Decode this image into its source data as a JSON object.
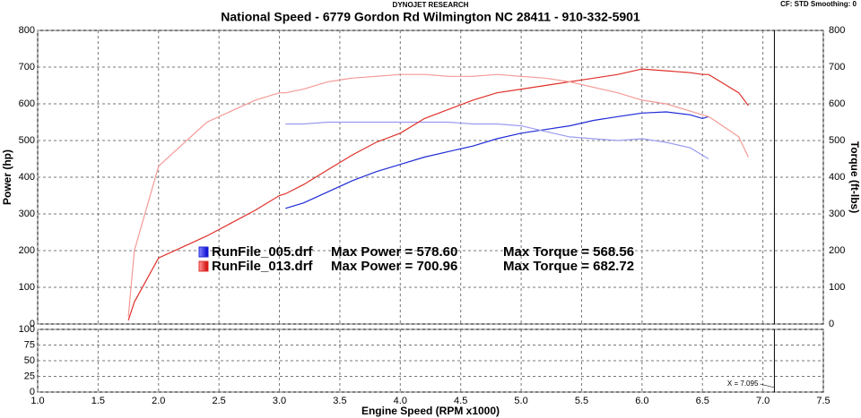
{
  "chart_data": {
    "type": "line",
    "header": "DYNOJET RESEARCH",
    "title": "National Speed - 6779 Gordon Rd Wilmington NC 28411 - 910-332-5901",
    "corner_note": "CF: STD  Smoothing: 0",
    "y_label": "Power (hp)",
    "y2_label": "Torque (ft-lbs)",
    "x_label": "Engine Speed (RPM x1000)",
    "grid": true,
    "xlim": [
      1.0,
      7.5
    ],
    "xticks": [
      {
        "value": 1,
        "label": "1.0"
      },
      1.5,
      {
        "value": 2,
        "label": "2.0"
      },
      2.5,
      {
        "value": 3,
        "label": "3.0"
      },
      3.5,
      {
        "value": 4,
        "label": "4.0"
      },
      4.5,
      {
        "value": 5,
        "label": "5.0"
      },
      5.5,
      {
        "value": 6,
        "label": "6.0"
      },
      6.5,
      {
        "value": 7,
        "label": "7.0"
      },
      7.5
    ],
    "ylim": [
      0,
      800
    ],
    "yticks": [
      0,
      100,
      200,
      300,
      400,
      500,
      600,
      700,
      800
    ],
    "y2lim": [
      0,
      800
    ],
    "y2ticks": [
      0,
      100,
      200,
      300,
      400,
      500,
      600,
      700,
      800
    ],
    "x": [
      1.75,
      1.8,
      2.0,
      2.2,
      2.4,
      2.6,
      2.8,
      3.0,
      3.05,
      3.2,
      3.4,
      3.6,
      3.8,
      4.0,
      4.2,
      4.4,
      4.6,
      4.8,
      5.0,
      5.2,
      5.4,
      5.6,
      5.8,
      6.0,
      6.2,
      6.4,
      6.5,
      6.55,
      6.6,
      6.8,
      6.88
    ],
    "series": [
      {
        "name": "RunFile_005.drf",
        "color": "#1f2ad6",
        "values": [
          null,
          null,
          null,
          null,
          null,
          null,
          null,
          null,
          315,
          330,
          360,
          390,
          415,
          435,
          455,
          470,
          485,
          505,
          520,
          530,
          540,
          555,
          565,
          575,
          578,
          570,
          560,
          565,
          null,
          null,
          null
        ]
      },
      {
        "name": "RunFile_005.drf",
        "color": "#9a9cf0",
        "axis": "y2",
        "values": [
          null,
          null,
          null,
          null,
          null,
          null,
          null,
          null,
          545,
          545,
          550,
          550,
          550,
          550,
          550,
          550,
          545,
          545,
          540,
          525,
          510,
          505,
          500,
          505,
          495,
          480,
          460,
          450,
          null,
          null,
          null
        ]
      },
      {
        "name": "RunFile_013.drf",
        "color": "#e0302a",
        "values": [
          10,
          60,
          180,
          210,
          240,
          275,
          310,
          350,
          355,
          380,
          420,
          460,
          495,
          520,
          560,
          585,
          610,
          630,
          640,
          650,
          660,
          670,
          680,
          695,
          690,
          685,
          680,
          680,
          670,
          630,
          595
        ]
      },
      {
        "name": "RunFile_013.drf",
        "color": "#f49a96",
        "axis": "y2",
        "values": [
          20,
          200,
          430,
          490,
          550,
          580,
          610,
          630,
          630,
          640,
          660,
          670,
          675,
          680,
          680,
          675,
          675,
          680,
          675,
          670,
          660,
          645,
          630,
          610,
          600,
          580,
          570,
          565,
          555,
          510,
          455
        ]
      }
    ],
    "annotations": [
      {
        "max_power": "Max Power = 578.60",
        "max_torque": "Max Torque = 568.56"
      },
      {
        "max_power": "Max Power = 700.96",
        "max_torque": "Max Torque = 682.72"
      }
    ],
    "lower_panel": {
      "ylim": [
        0,
        100
      ],
      "yticks": [
        0,
        25,
        50,
        75,
        100
      ]
    },
    "cursor": {
      "value": 7.095,
      "label": "X = 7.095"
    }
  }
}
